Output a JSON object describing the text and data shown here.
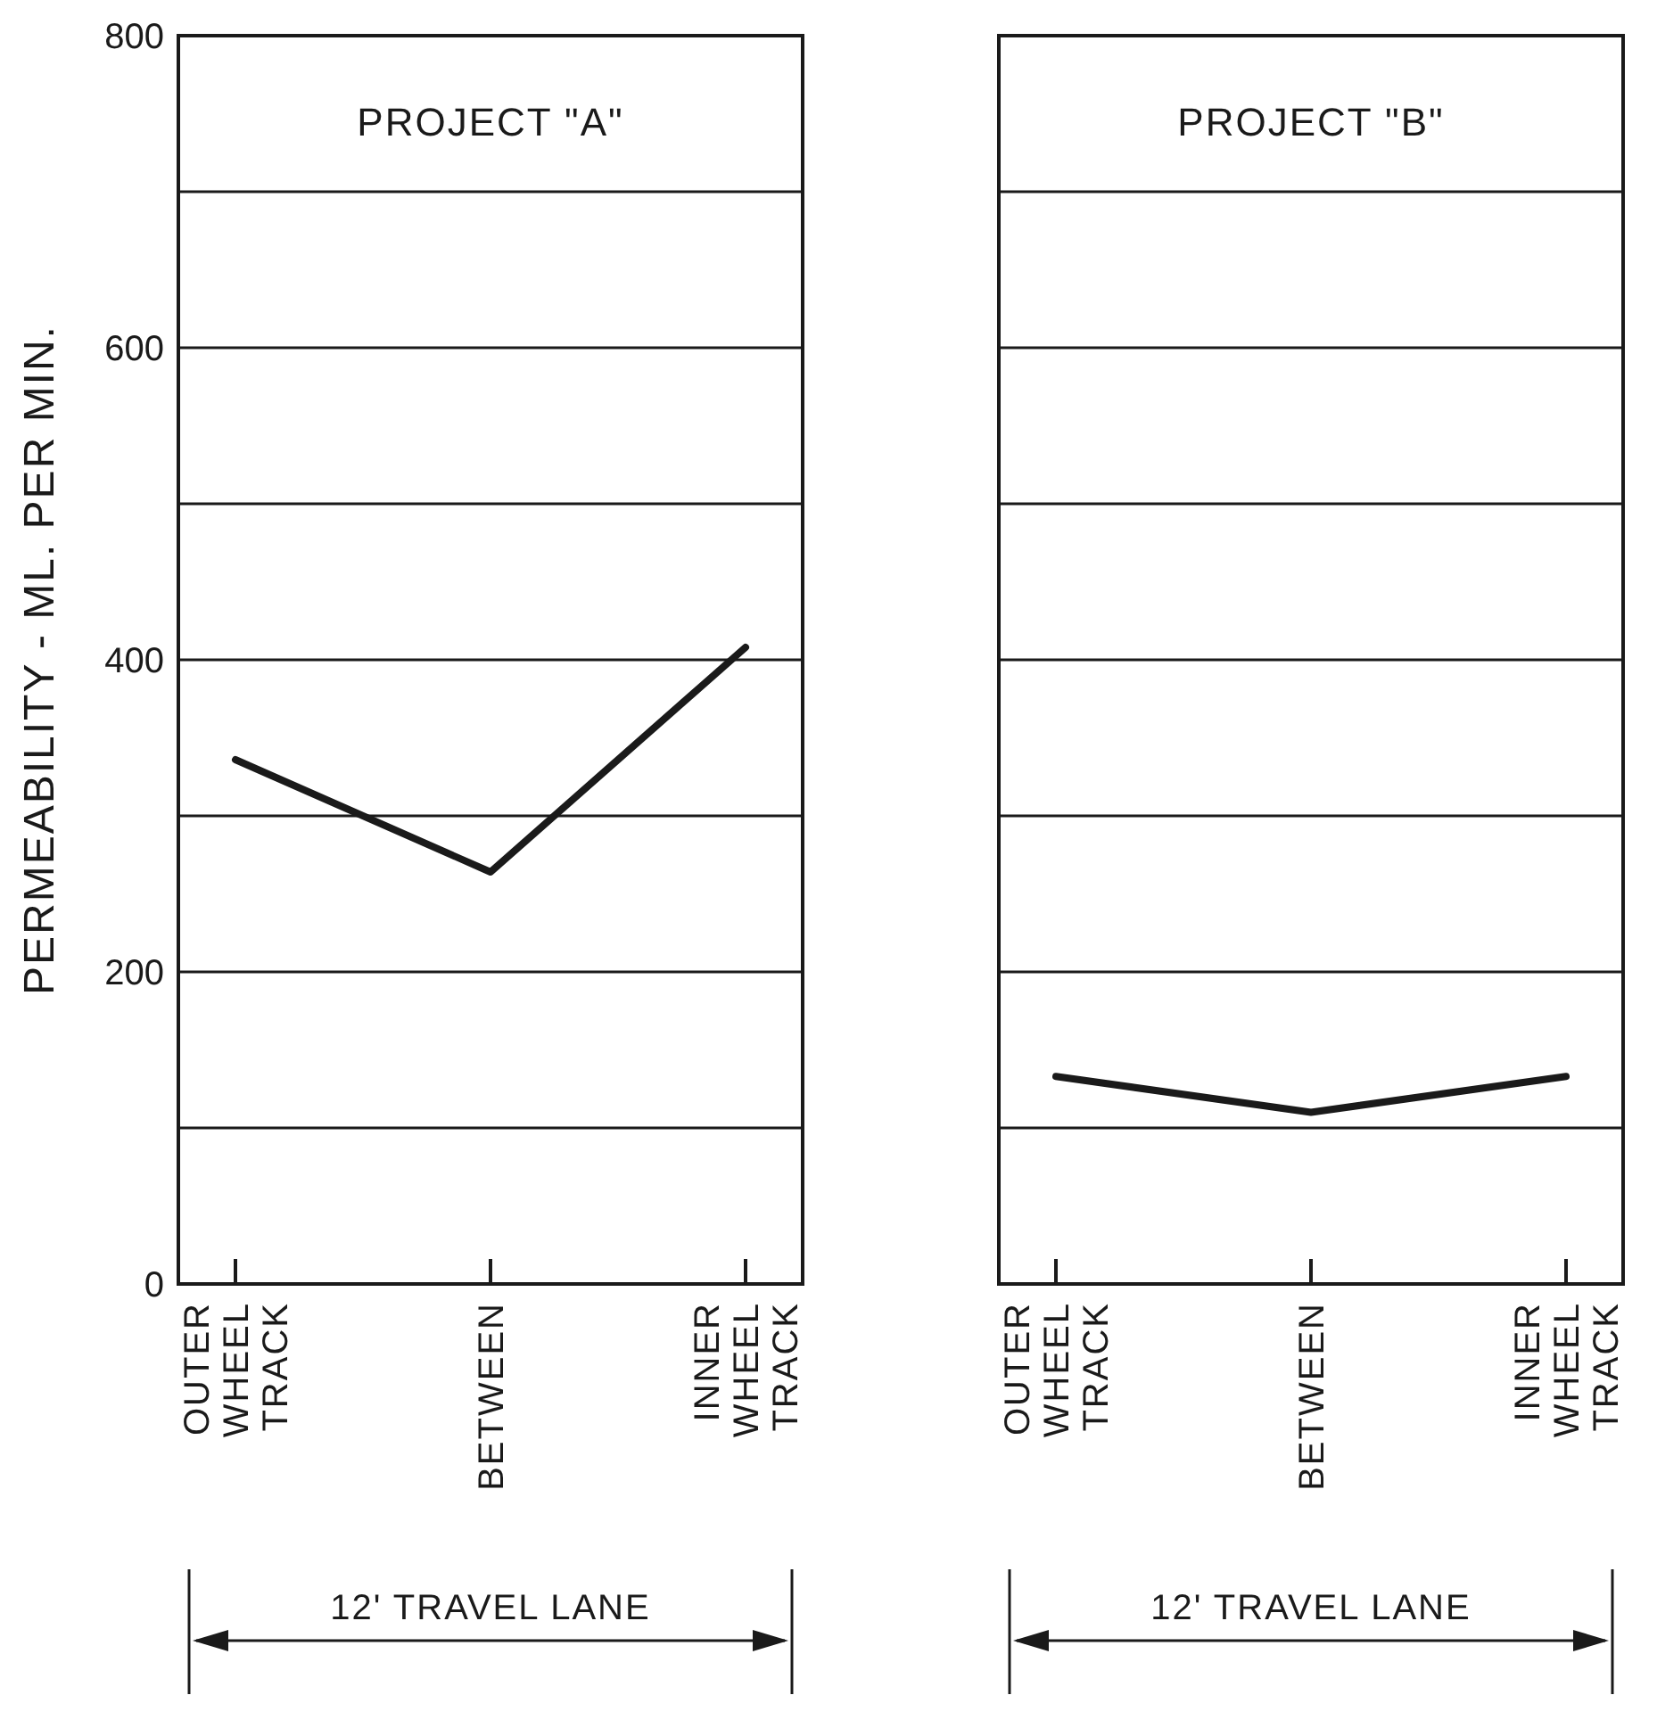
{
  "chart_data": [
    {
      "type": "line",
      "title": "PROJECT \"A\"",
      "ylabel": "PERMEABILITY - ML. PER MIN.",
      "categories": [
        "OUTER WHEEL TRACK",
        "BETWEEN",
        "INNER WHEEL TRACK"
      ],
      "series": [
        {
          "color": "#1a1a1a",
          "values": [
            336,
            264,
            408
          ]
        }
      ],
      "ylim": [
        0,
        800
      ],
      "yticks": [
        0,
        {
          "value": 100,
          "label": null
        },
        200,
        {
          "value": 300,
          "label": null
        },
        400,
        {
          "value": 500,
          "label": null
        },
        600,
        {
          "value": 700,
          "label": null
        },
        800
      ],
      "grid": "y",
      "annotations": [
        "12' TRAVEL LANE"
      ]
    },
    {
      "type": "line",
      "title": "PROJECT \"B\"",
      "categories": [
        "OUTER WHEEL TRACK",
        "BETWEEN",
        "INNER WHEEL TRACK"
      ],
      "series": [
        {
          "color": "#1a1a1a",
          "values": [
            133,
            110,
            133
          ]
        }
      ],
      "ylim": [
        0,
        800
      ],
      "yticks": [
        0,
        {
          "value": 100,
          "label": null
        },
        200,
        {
          "value": 300,
          "label": null
        },
        400,
        {
          "value": 500,
          "label": null
        },
        600,
        {
          "value": 700,
          "label": null
        },
        800
      ],
      "grid": "y",
      "tick_labels": "x",
      "annotations": [
        "12' TRAVEL LANE"
      ]
    }
  ]
}
